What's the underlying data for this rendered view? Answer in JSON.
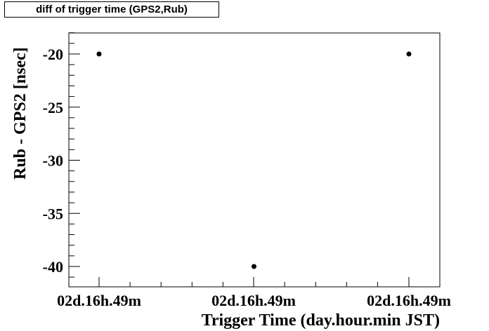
{
  "chart_data": {
    "type": "scatter",
    "title": "diff of trigger time (GPS2,Rub)",
    "xlabel": "Trigger Time (day.hour.min JST)",
    "ylabel": "Rub - GPS2 [nsec]",
    "x_tick_labels": [
      "02d.16h.49m",
      "02d.16h.49m",
      "02d.16h.49m"
    ],
    "y_tick_labels": [
      "-20",
      "-25",
      "-30",
      "-35",
      "-40"
    ],
    "y_ticks": [
      -20,
      -25,
      -30,
      -35,
      -40
    ],
    "ylim": [
      -42,
      -18
    ],
    "series": [
      {
        "points": [
          {
            "x": 1,
            "y": -20
          },
          {
            "x": 2,
            "y": -40
          },
          {
            "x": 3,
            "y": -20
          }
        ]
      }
    ],
    "grid": false,
    "marker_color": "#000000"
  }
}
